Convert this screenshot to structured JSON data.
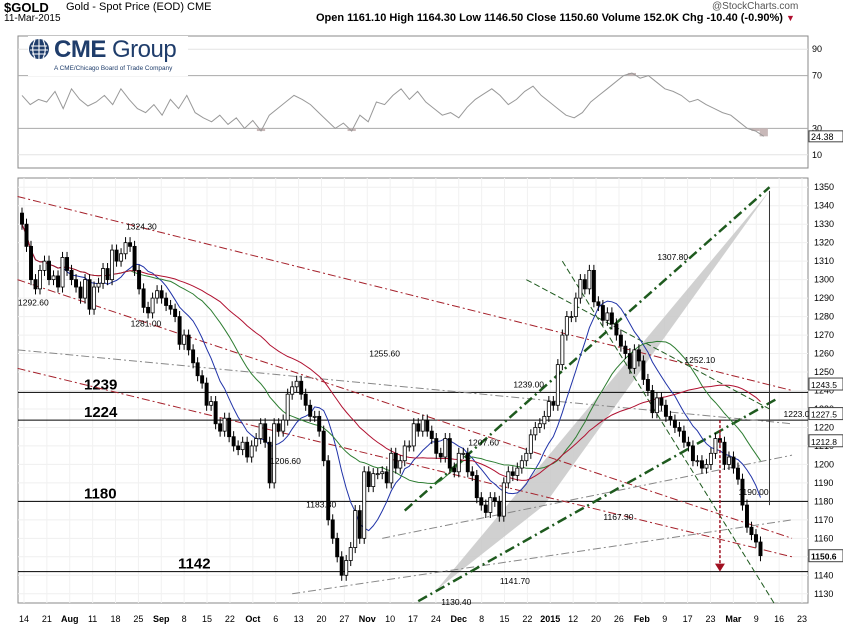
{
  "header": {
    "symbol": "$GOLD",
    "subtitle": "Gold - Spot Price (EOD) CME",
    "date": "11-Mar-2015",
    "ohlc_text": "Open 1161.10  High 1164.30  Low 1146.50  Close 1150.60  Volume 152.0K  Chg -10.40 (-0.90%)",
    "chg_arrow": "▼",
    "credit": "@StockCharts.com"
  },
  "logo": {
    "word_bold": "CME",
    "word_light": " Group",
    "tagline": "A CME/Chicago Board of Trade Company"
  },
  "colors": {
    "candle_up": "#ffffff",
    "candle_down": "#000000",
    "ma_blue": "#2033a8",
    "ma_green": "#2e7d32",
    "ma_red": "#b01030",
    "trend_darkred": "#a5202a",
    "channel_green": "#1e5a1e",
    "target_arrow": "#a01020",
    "rsi_fill": "#c8b8b8"
  },
  "chart_data": {
    "type": "candlestick",
    "y_axis": {
      "ylim": [
        1125,
        1355
      ],
      "ticks": [
        1130,
        1140,
        1150,
        1160,
        1170,
        1180,
        1190,
        1200,
        1210,
        1220,
        1230,
        1240,
        1250,
        1260,
        1270,
        1280,
        1290,
        1300,
        1310,
        1320,
        1330,
        1340,
        1350
      ],
      "side": "right"
    },
    "x_axis": {
      "tick_labels": [
        "14",
        "21",
        "Aug",
        "11",
        "18",
        "25",
        "Sep",
        "8",
        "15",
        "22",
        "Oct",
        "6",
        "13",
        "20",
        "27",
        "Nov",
        "10",
        "17",
        "24",
        "Dec",
        "8",
        "15",
        "22",
        "2015",
        "12",
        "20",
        "26",
        "Feb",
        "9",
        "17",
        "23",
        "Mar",
        "9",
        "16",
        "23"
      ],
      "bold_labels": [
        "Aug",
        "Sep",
        "Oct",
        "Nov",
        "Dec",
        "2015",
        "Feb",
        "Mar"
      ]
    },
    "rsi": {
      "ticks": [
        10,
        30,
        70,
        90
      ],
      "last_value": "24.38",
      "ylim": [
        0,
        100
      ],
      "values": [
        55,
        48,
        52,
        50,
        58,
        45,
        60,
        52,
        47,
        50,
        55,
        48,
        60,
        52,
        45,
        42,
        48,
        40,
        52,
        45,
        55,
        42,
        38,
        35,
        40,
        33,
        38,
        30,
        36,
        28,
        40,
        45,
        50,
        55,
        52,
        48,
        42,
        36,
        30,
        34,
        28,
        40,
        35,
        50,
        48,
        55,
        60,
        52,
        58,
        50,
        45,
        40,
        42,
        38,
        46,
        52,
        56,
        60,
        55,
        48,
        52,
        58,
        62,
        55,
        50,
        45,
        40,
        38,
        42,
        50,
        55,
        60,
        65,
        70,
        72,
        68,
        70,
        65,
        60,
        58,
        55,
        50,
        52,
        48,
        45,
        42,
        40,
        35,
        30,
        28,
        24
      ]
    },
    "horizontal_levels": [
      {
        "label": "1239",
        "value": 1239
      },
      {
        "label": "1224",
        "value": 1224
      },
      {
        "label": "1180",
        "value": 1180
      },
      {
        "label": "1142",
        "value": 1142
      }
    ],
    "annotations": [
      {
        "text": "1324.30",
        "value": 1324.3
      },
      {
        "text": "1292.60",
        "value": 1292.6
      },
      {
        "text": "1281.00",
        "value": 1281
      },
      {
        "text": "1255.60",
        "value": 1255.6
      },
      {
        "text": "1206.60",
        "value": 1206.6
      },
      {
        "text": "1183.30",
        "value": 1183.3
      },
      {
        "text": "1207.60",
        "value": 1207.6
      },
      {
        "text": "1239.00",
        "value": 1239
      },
      {
        "text": "1130.40",
        "value": 1130.4
      },
      {
        "text": "1141.70",
        "value": 1141.7
      },
      {
        "text": "1167.30",
        "value": 1167.3
      },
      {
        "text": "1307.80",
        "value": 1307.8
      },
      {
        "text": "1252.10",
        "value": 1252.1
      },
      {
        "text": "1223.00",
        "value": 1223
      },
      {
        "text": "1190.00",
        "value": 1190
      }
    ],
    "right_labels": [
      {
        "text": "1243.5",
        "value": 1243.5
      },
      {
        "text": "1227.5",
        "value": 1227.5
      },
      {
        "text": "1212.8",
        "value": 1212.8
      },
      {
        "text": "1150.6",
        "value": 1150.6
      }
    ],
    "target_arrow": {
      "from": 1224,
      "to": 1142
    },
    "closes": [
      1330,
      1318,
      1300,
      1295,
      1305,
      1310,
      1300,
      1302,
      1296,
      1312,
      1305,
      1300,
      1296,
      1290,
      1300,
      1284,
      1296,
      1298,
      1306,
      1300,
      1316,
      1310,
      1314,
      1320,
      1318,
      1305,
      1295,
      1285,
      1282,
      1290,
      1294,
      1290,
      1286,
      1284,
      1280,
      1265,
      1270,
      1262,
      1255,
      1248,
      1244,
      1232,
      1234,
      1222,
      1218,
      1225,
      1215,
      1210,
      1208,
      1212,
      1204,
      1210,
      1214,
      1222,
      1212,
      1190,
      1222,
      1218,
      1224,
      1238,
      1242,
      1245,
      1238,
      1232,
      1226,
      1226,
      1218,
      1202,
      1170,
      1160,
      1150,
      1140,
      1148,
      1155,
      1175,
      1160,
      1196,
      1188,
      1195,
      1195,
      1196,
      1190,
      1206,
      1198,
      1202,
      1210,
      1210,
      1222,
      1218,
      1224,
      1218,
      1214,
      1206,
      1204,
      1214,
      1198,
      1196,
      1206,
      1206,
      1196,
      1194,
      1182,
      1178,
      1174,
      1182,
      1180,
      1172,
      1190,
      1196,
      1194,
      1198,
      1202,
      1206,
      1216,
      1220,
      1222,
      1226,
      1234,
      1232,
      1254,
      1270,
      1280,
      1280,
      1290,
      1300,
      1295,
      1305,
      1288,
      1286,
      1278,
      1282,
      1276,
      1270,
      1264,
      1260,
      1252,
      1262,
      1256,
      1246,
      1240,
      1228,
      1236,
      1232,
      1226,
      1224,
      1220,
      1218,
      1212,
      1210,
      1202,
      1202,
      1198,
      1200,
      1206,
      1214,
      1212,
      1200,
      1204,
      1198,
      1192,
      1178,
      1166,
      1162,
      1158,
      1150.6
    ]
  }
}
